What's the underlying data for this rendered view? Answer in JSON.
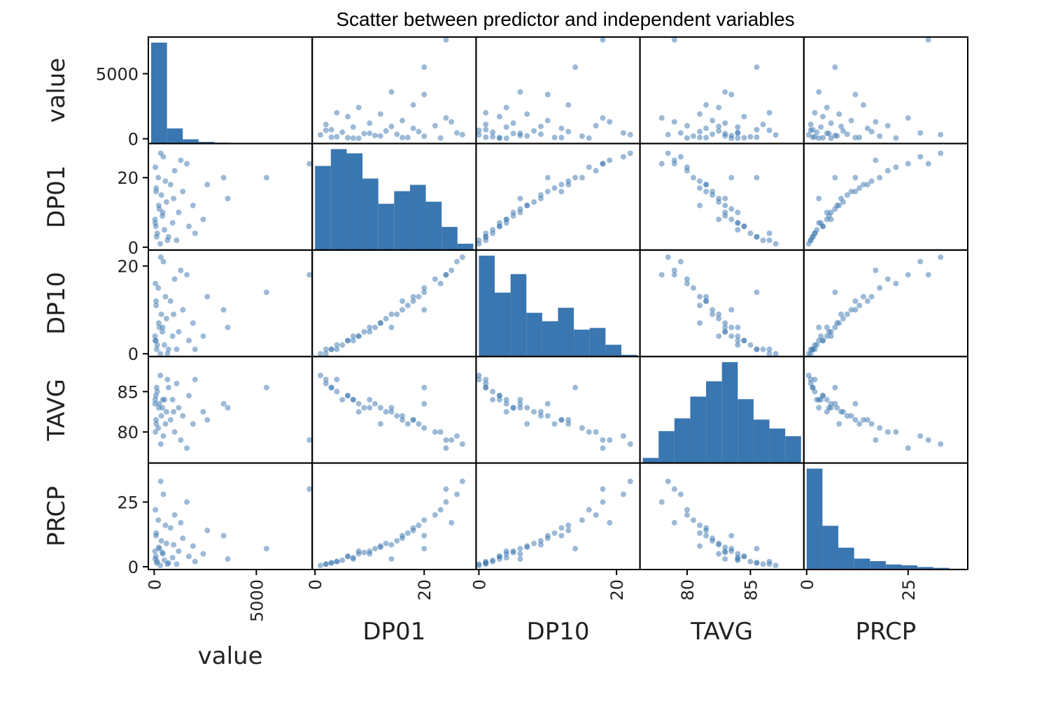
{
  "chart_data": {
    "type": "scatter",
    "title": "Scatter between predictor and independent variables",
    "variables": [
      "value",
      "DP01",
      "DP10",
      "TAVG",
      "PRCP"
    ],
    "color": "#3a76b0",
    "axes": [
      {
        "name": "value",
        "range": [
          -150,
          7600
        ],
        "ticks": [
          0,
          5000
        ],
        "tick_labels": [
          "0",
          "5000"
        ]
      },
      {
        "name": "DP01",
        "range": [
          0,
          29
        ],
        "ticks": [
          0,
          20
        ],
        "tick_labels": [
          "0",
          "20"
        ]
      },
      {
        "name": "DP10",
        "range": [
          0,
          23
        ],
        "ticks": [
          0,
          20
        ],
        "tick_labels": [
          "0",
          "20"
        ]
      },
      {
        "name": "TAVG",
        "range": [
          76.5,
          89
        ],
        "ticks": [
          80,
          85
        ],
        "tick_labels": [
          "80",
          "85"
        ]
      },
      {
        "name": "PRCP",
        "range": [
          0,
          39
        ],
        "ticks": [
          0,
          25
        ],
        "tick_labels": [
          "0",
          "25"
        ]
      }
    ],
    "histograms": {
      "value": [
        120,
        18,
        5,
        2,
        1,
        0,
        0,
        0,
        0,
        0
      ],
      "DP01": [
        40,
        48,
        46,
        34,
        22,
        28,
        31,
        23,
        11,
        3
      ],
      "DP10": [
        60,
        38,
        49,
        26,
        21,
        29,
        16,
        17,
        7,
        1
      ],
      "TAVG": [
        4,
        25,
        35,
        52,
        64,
        79,
        50,
        34,
        27,
        21
      ],
      "PRCP": [
        120,
        52,
        26,
        13,
        10,
        6,
        5,
        3,
        2,
        1
      ]
    },
    "points": [
      {
        "value": 7600,
        "DP01": 24,
        "DP10": 18,
        "TAVG": 79.0,
        "PRCP": 30.0
      },
      {
        "value": 5500,
        "DP01": 20,
        "DP10": 14,
        "TAVG": 85.5,
        "PRCP": 7.0
      },
      {
        "value": 3400,
        "DP01": 20,
        "DP10": 10,
        "TAVG": 83.5,
        "PRCP": 12.0
      },
      {
        "value": 3600,
        "DP01": 14,
        "DP10": 6,
        "TAVG": 83.0,
        "PRCP": 3.0
      },
      {
        "value": 2600,
        "DP01": 18,
        "DP10": 13,
        "TAVG": 81.5,
        "PRCP": 14.0
      },
      {
        "value": 2400,
        "DP01": 8,
        "DP10": 4,
        "TAVG": 82.5,
        "PRCP": 5.0
      },
      {
        "value": 2000,
        "DP01": 4,
        "DP10": 1,
        "TAVG": 86.5,
        "PRCP": 2.0
      },
      {
        "value": 1900,
        "DP01": 12,
        "DP10": 7,
        "TAVG": 81.0,
        "PRCP": 8.0
      },
      {
        "value": 1700,
        "DP01": 6,
        "DP10": 3,
        "TAVG": 84.5,
        "PRCP": 4.0
      },
      {
        "value": 1600,
        "DP01": 24,
        "DP10": 18,
        "TAVG": 78.0,
        "PRCP": 25.0
      },
      {
        "value": 1400,
        "DP01": 16,
        "DP10": 10,
        "TAVG": 82.0,
        "PRCP": 11.0
      },
      {
        "value": 1200,
        "DP01": 10,
        "DP10": 5,
        "TAVG": 83.0,
        "PRCP": 6.0
      },
      {
        "value": 1100,
        "DP01": 2,
        "DP10": 1,
        "TAVG": 86.0,
        "PRCP": 1.0
      },
      {
        "value": 1000,
        "DP01": 22,
        "DP10": 17,
        "TAVG": 80.0,
        "PRCP": 20.0
      },
      {
        "value": 900,
        "DP01": 7,
        "DP10": 4,
        "TAVG": 84.0,
        "PRCP": 3.5
      },
      {
        "value": 800,
        "DP01": 18,
        "DP10": 12,
        "TAVG": 81.5,
        "PRCP": 15.0
      },
      {
        "value": 700,
        "DP01": 3,
        "DP10": 1,
        "TAVG": 85.5,
        "PRCP": 1.5
      },
      {
        "value": 600,
        "DP01": 13,
        "DP10": 8,
        "TAVG": 82.5,
        "PRCP": 9.0
      },
      {
        "value": 500,
        "DP01": 5,
        "DP10": 2,
        "TAVG": 84.0,
        "PRCP": 2.5
      },
      {
        "value": 450,
        "DP01": 26,
        "DP10": 21,
        "TAVG": 79.5,
        "PRCP": 28.0
      },
      {
        "value": 400,
        "DP01": 9,
        "DP10": 5,
        "TAVG": 83.0,
        "PRCP": 5.5
      },
      {
        "value": 350,
        "DP01": 15,
        "DP10": 9,
        "TAVG": 82.0,
        "PRCP": 10.0
      },
      {
        "value": 300,
        "DP01": 1,
        "DP10": 0,
        "TAVG": 87.0,
        "PRCP": 0.5
      },
      {
        "value": 250,
        "DP01": 11,
        "DP10": 6,
        "TAVG": 83.5,
        "PRCP": 7.0
      },
      {
        "value": 200,
        "DP01": 20,
        "DP10": 15,
        "TAVG": 80.5,
        "PRCP": 18.0
      },
      {
        "value": 150,
        "DP01": 4,
        "DP10": 2,
        "TAVG": 85.0,
        "PRCP": 2.0
      },
      {
        "value": 100,
        "DP01": 17,
        "DP10": 11,
        "TAVG": 81.0,
        "PRCP": 13.0
      },
      {
        "value": 80,
        "DP01": 6,
        "DP10": 3,
        "TAVG": 84.5,
        "PRCP": 4.0
      },
      {
        "value": 60,
        "DP01": 23,
        "DP10": 16,
        "TAVG": 80.0,
        "PRCP": 22.0
      },
      {
        "value": 40,
        "DP01": 8,
        "DP10": 4,
        "TAVG": 83.5,
        "PRCP": 6.0
      },
      {
        "value": 1300,
        "DP01": 25,
        "DP10": 19,
        "TAVG": 79.0,
        "PRCP": 17.0
      },
      {
        "value": 950,
        "DP01": 14,
        "DP10": 9,
        "TAVG": 82.5,
        "PRCP": 8.5
      },
      {
        "value": 650,
        "DP01": 2,
        "DP10": 0,
        "TAVG": 86.5,
        "PRCP": 1.0
      },
      {
        "value": 550,
        "DP01": 19,
        "DP10": 13,
        "TAVG": 81.0,
        "PRCP": 16.0
      },
      {
        "value": 420,
        "DP01": 10,
        "DP10": 6,
        "TAVG": 84.0,
        "PRCP": 5.0
      },
      {
        "value": 320,
        "DP01": 27,
        "DP10": 22,
        "TAVG": 78.5,
        "PRCP": 33.0
      },
      {
        "value": 220,
        "DP01": 12,
        "DP10": 7,
        "TAVG": 83.0,
        "PRCP": 7.5
      },
      {
        "value": 120,
        "DP01": 3,
        "DP10": 1,
        "TAVG": 85.5,
        "PRCP": 1.5
      },
      {
        "value": 90,
        "DP01": 16,
        "DP10": 12,
        "TAVG": 81.5,
        "PRCP": 12.0
      },
      {
        "value": 50,
        "DP01": 7,
        "DP10": 3,
        "TAVG": 84.0,
        "PRCP": 3.0
      }
    ]
  }
}
